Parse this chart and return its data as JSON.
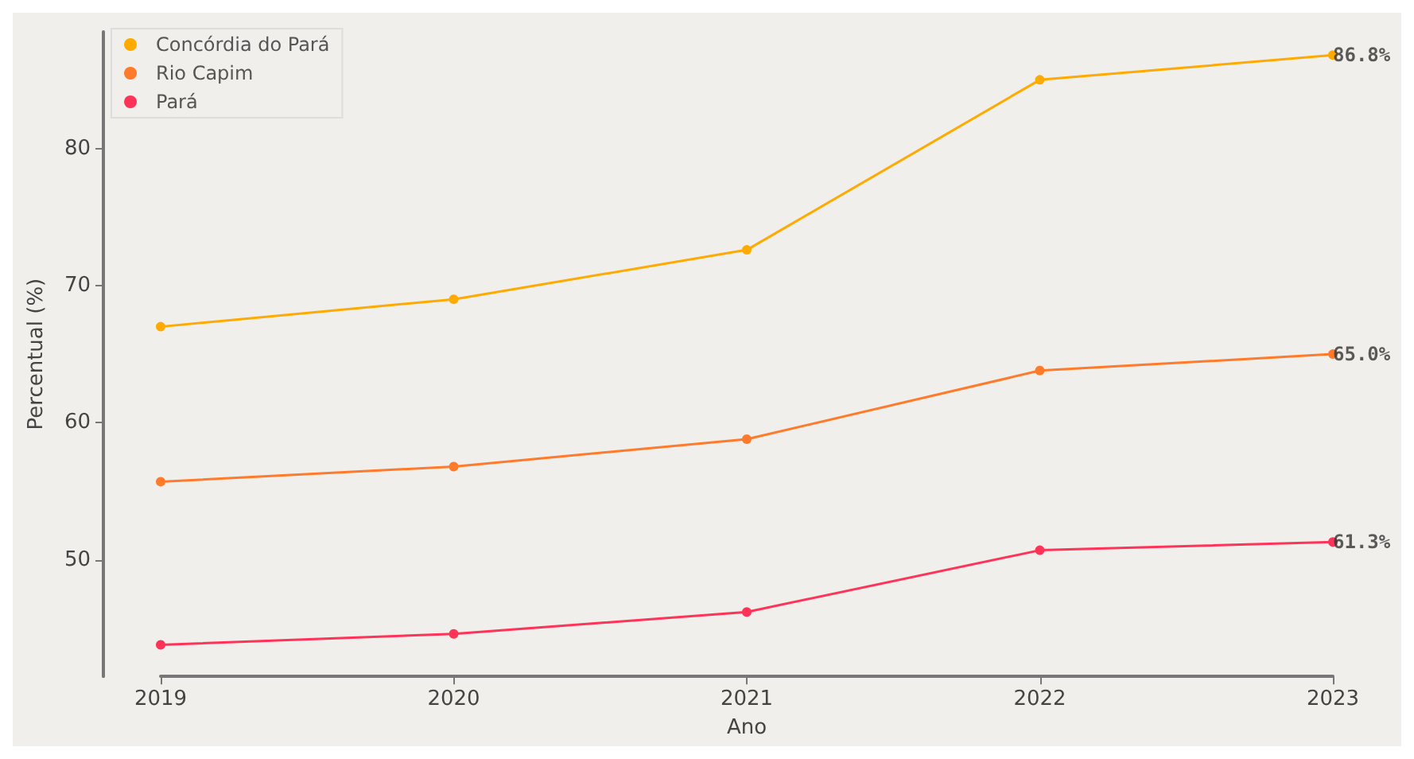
{
  "chart_data": {
    "type": "line",
    "xlabel": "Ano",
    "ylabel": "Percentual (%)",
    "categories": [
      "2019",
      "2020",
      "2021",
      "2022",
      "2023"
    ],
    "series": [
      {
        "name": "Concórdia do Pará",
        "color": "#ffaa00",
        "values": [
          67.0,
          69.0,
          72.6,
          85.0,
          86.8
        ]
      },
      {
        "name": "Rio Capim",
        "color": "#ff7a2a",
        "values": [
          55.7,
          56.8,
          58.8,
          63.8,
          65.0
        ]
      },
      {
        "name": "Pará",
        "color": "#ff3358",
        "values": [
          43.8,
          44.6,
          46.2,
          50.7,
          51.3
        ]
      }
    ],
    "annotations": [
      {
        "text": "86.8%",
        "x": "2023",
        "y": 86.8
      },
      {
        "text": "65.0%",
        "x": "2023",
        "y": 65.0
      },
      {
        "text": "61.3%",
        "x": "2023",
        "y": 51.3
      }
    ],
    "ylim": [
      41.5,
      88.5
    ],
    "yticks": [
      50,
      60,
      70,
      80
    ],
    "grid": false,
    "legend": "top left",
    "marker": "circle",
    "line_style": "solid"
  }
}
